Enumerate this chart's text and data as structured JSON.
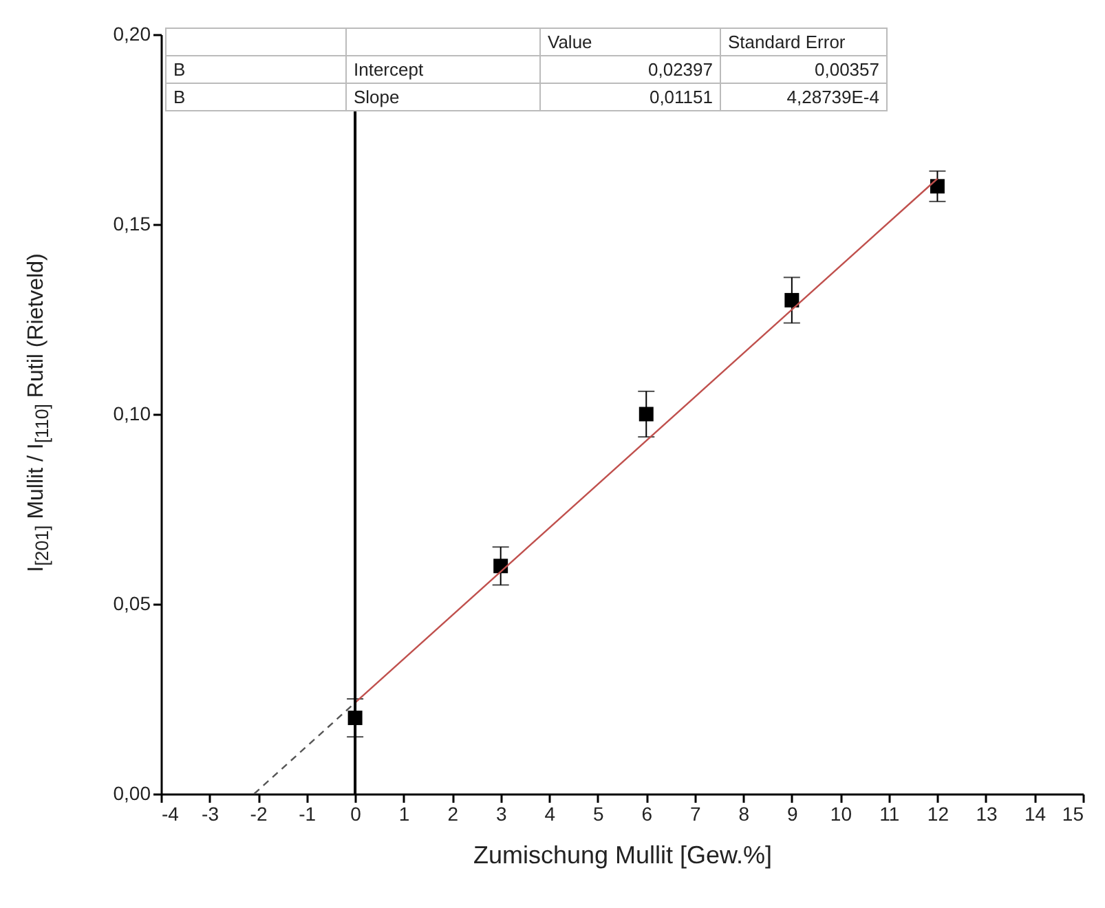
{
  "chart_data": {
    "type": "scatter",
    "xlabel": "Zumischung Mullit [Gew.%]",
    "ylabel": "I$_{[201]}$ Mullit / I$_{[110]}$ Rutil (Rietveld)",
    "xlim": [
      -4,
      15
    ],
    "xticks": [
      -4,
      -3,
      -2,
      -1,
      0,
      1,
      2,
      3,
      4,
      5,
      6,
      7,
      8,
      9,
      10,
      11,
      12,
      13,
      14,
      15
    ],
    "ylim": [
      0,
      0.2
    ],
    "yticks": [
      {
        "value": 0,
        "label": "0,00"
      },
      {
        "value": 0.05,
        "label": "0,05"
      },
      {
        "value": 0.1,
        "label": "0,10"
      },
      {
        "value": 0.15,
        "label": "0,15"
      },
      {
        "value": 0.2,
        "label": "0,20"
      }
    ],
    "marker": "square",
    "annotations": [
      "Value",
      "Standard Error",
      "B",
      "Intercept",
      "0,02397",
      "0,00357",
      "B",
      "Slope",
      "0,01151",
      "4,28739E-4"
    ],
    "ref_lines": [
      {
        "axis": "x",
        "value": 0,
        "color": "#000000"
      }
    ],
    "series": [
      {
        "color": "#000000",
        "x": [
          0,
          3,
          6,
          9,
          12
        ],
        "values": [
          0.02,
          0.06,
          0.1,
          0.13,
          0.16
        ],
        "errors": [
          0.005,
          0.005,
          0.006,
          0.006,
          0.004
        ]
      },
      {
        "type": "line",
        "marker": "none",
        "color": "#c0504d",
        "x": [
          0,
          12
        ],
        "values": [
          0.024,
          0.162
        ]
      },
      {
        "type": "line",
        "marker": "none",
        "color": "#555555",
        "line_style": "dashed",
        "x": [
          -2.08,
          0
        ],
        "values": [
          0,
          0.024
        ]
      }
    ]
  }
}
